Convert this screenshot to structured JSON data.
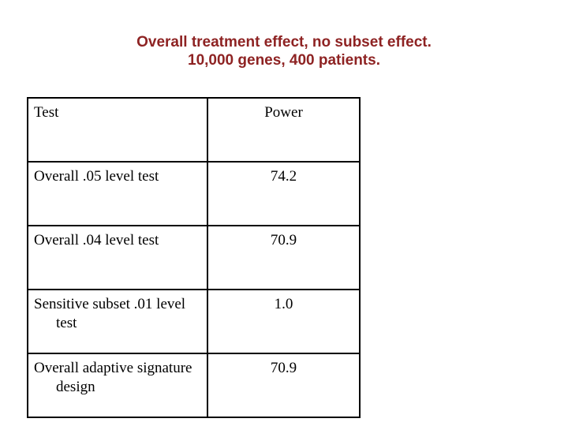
{
  "page": {
    "background_color": "#ffffff",
    "title_color": "#8E2323",
    "table_border_color": "#000000"
  },
  "title": {
    "line1": "Overall treatment effect, no subset effect.",
    "line2": "10,000 genes, 400 patients."
  },
  "table": {
    "headers": {
      "test": "Test",
      "power": "Power"
    },
    "rows": [
      {
        "test_lines": [
          "Overall .05 level test",
          ""
        ],
        "test_full": "Overall .05 level test",
        "power": "74.2"
      },
      {
        "test_lines": [
          "Overall .04 level test",
          ""
        ],
        "test_full": "Overall .04 level test",
        "power": "70.9"
      },
      {
        "test_lines": [
          "Sensitive subset .01 level",
          "test"
        ],
        "test_full": "Sensitive subset .01 level test",
        "power": "1.0"
      },
      {
        "test_lines": [
          "Overall adaptive signature",
          "design"
        ],
        "test_full": "Overall adaptive signature design",
        "power": "70.9"
      }
    ]
  }
}
